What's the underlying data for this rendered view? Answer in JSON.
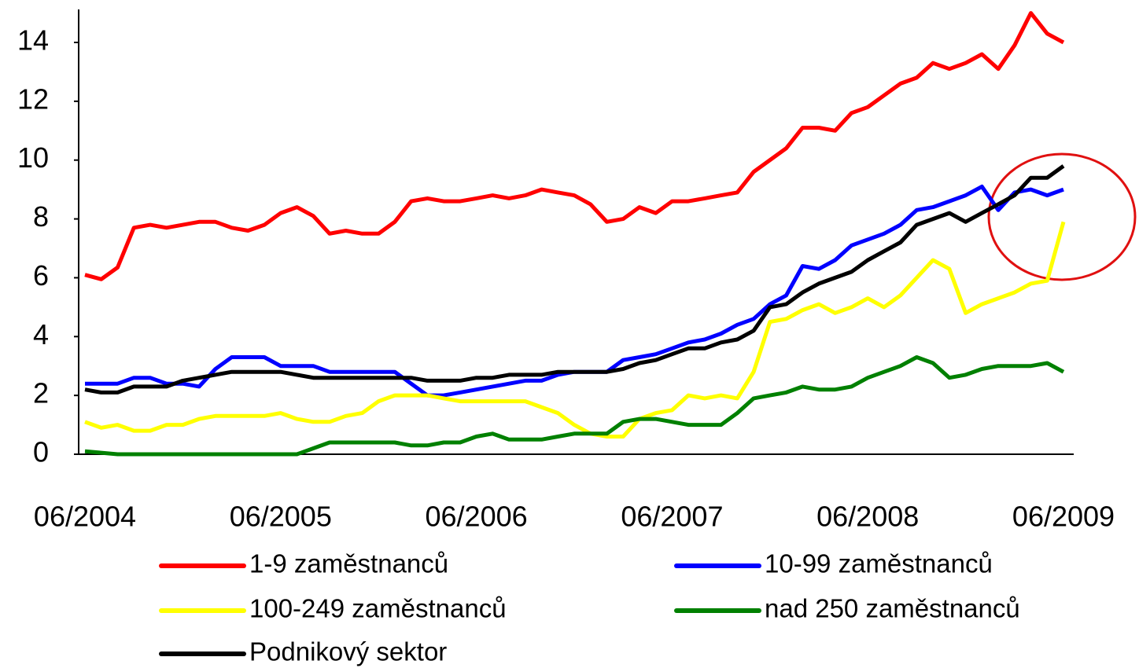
{
  "chart_data": {
    "type": "line",
    "categories": [
      "06/2004",
      null,
      null,
      null,
      null,
      null,
      null,
      null,
      null,
      null,
      null,
      null,
      "06/2005",
      null,
      null,
      null,
      null,
      null,
      null,
      null,
      null,
      null,
      null,
      null,
      "06/2006",
      null,
      null,
      null,
      null,
      null,
      null,
      null,
      null,
      null,
      null,
      null,
      "06/2007",
      null,
      null,
      null,
      null,
      null,
      null,
      null,
      null,
      null,
      null,
      null,
      "06/2008",
      null,
      null,
      null,
      null,
      null,
      null,
      null,
      null,
      null,
      null,
      null,
      "06/2009"
    ],
    "series": [
      {
        "name": "1-9 zaměstnanců",
        "color": "#ff0000",
        "values": [
          6.1,
          5.95,
          6.35,
          7.7,
          7.8,
          7.7,
          7.8,
          7.9,
          7.9,
          7.7,
          7.6,
          7.8,
          8.2,
          8.4,
          8.1,
          7.5,
          7.6,
          7.5,
          7.5,
          7.9,
          8.6,
          8.7,
          8.6,
          8.6,
          8.7,
          8.8,
          8.7,
          8.8,
          9.0,
          8.9,
          8.8,
          8.5,
          7.9,
          8.0,
          8.4,
          8.2,
          8.6,
          8.6,
          8.7,
          8.8,
          8.9,
          9.6,
          10.0,
          10.4,
          11.1,
          11.1,
          11.0,
          11.6,
          11.8,
          12.2,
          12.6,
          12.8,
          13.3,
          13.1,
          13.3,
          13.6,
          13.1,
          13.9,
          15.0,
          14.3,
          14.0
        ]
      },
      {
        "name": "10-99 zaměstnanců",
        "color": "#0000ff",
        "values": [
          2.4,
          2.4,
          2.4,
          2.6,
          2.6,
          2.4,
          2.4,
          2.3,
          2.9,
          3.3,
          3.3,
          3.3,
          3.0,
          3.0,
          3.0,
          2.8,
          2.8,
          2.8,
          2.8,
          2.8,
          2.4,
          2.0,
          2.0,
          2.1,
          2.2,
          2.3,
          2.4,
          2.5,
          2.5,
          2.7,
          2.8,
          2.8,
          2.8,
          3.2,
          3.3,
          3.4,
          3.6,
          3.8,
          3.9,
          4.1,
          4.4,
          4.6,
          5.1,
          5.4,
          6.4,
          6.3,
          6.6,
          7.1,
          7.3,
          7.5,
          7.8,
          8.3,
          8.4,
          8.6,
          8.8,
          9.1,
          8.3,
          8.9,
          9.0,
          8.8,
          9.0
        ]
      },
      {
        "name": "100-249 zaměstnanců",
        "color": "#ffff00",
        "values": [
          1.1,
          0.9,
          1.0,
          0.8,
          0.8,
          1.0,
          1.0,
          1.2,
          1.3,
          1.3,
          1.3,
          1.3,
          1.4,
          1.2,
          1.1,
          1.1,
          1.3,
          1.4,
          1.8,
          2.0,
          2.0,
          2.0,
          1.9,
          1.8,
          1.8,
          1.8,
          1.8,
          1.8,
          1.6,
          1.4,
          1.0,
          0.7,
          0.6,
          0.6,
          1.2,
          1.4,
          1.5,
          2.0,
          1.9,
          2.0,
          1.9,
          2.8,
          4.5,
          4.6,
          4.9,
          5.1,
          4.8,
          5.0,
          5.3,
          5.0,
          5.4,
          6.0,
          6.6,
          6.3,
          4.8,
          5.1,
          5.3,
          5.5,
          5.8,
          5.9,
          7.9
        ]
      },
      {
        "name": "nad 250 zaměstnanců",
        "color": "#008000",
        "values": [
          0.1,
          0.05,
          0,
          0,
          0,
          0,
          0,
          0,
          0,
          0,
          0,
          0,
          0,
          0,
          0.2,
          0.4,
          0.4,
          0.4,
          0.4,
          0.4,
          0.3,
          0.3,
          0.4,
          0.4,
          0.6,
          0.7,
          0.5,
          0.5,
          0.5,
          0.6,
          0.7,
          0.7,
          0.7,
          1.1,
          1.2,
          1.2,
          1.1,
          1.0,
          1.0,
          1.0,
          1.4,
          1.9,
          2.0,
          2.1,
          2.3,
          2.2,
          2.2,
          2.3,
          2.6,
          2.8,
          3.0,
          3.3,
          3.1,
          2.6,
          2.7,
          2.9,
          3.0,
          3.0,
          3.0,
          3.1,
          2.8
        ]
      },
      {
        "name": "Podnikový sektor",
        "color": "#000000",
        "values": [
          2.2,
          2.1,
          2.1,
          2.3,
          2.3,
          2.3,
          2.5,
          2.6,
          2.7,
          2.8,
          2.8,
          2.8,
          2.8,
          2.7,
          2.6,
          2.6,
          2.6,
          2.6,
          2.6,
          2.6,
          2.6,
          2.5,
          2.5,
          2.5,
          2.6,
          2.6,
          2.7,
          2.7,
          2.7,
          2.8,
          2.8,
          2.8,
          2.8,
          2.9,
          3.1,
          3.2,
          3.4,
          3.6,
          3.6,
          3.8,
          3.9,
          4.2,
          5.0,
          5.1,
          5.5,
          5.8,
          6.0,
          6.2,
          6.6,
          6.9,
          7.2,
          7.8,
          8.0,
          8.2,
          7.9,
          8.2,
          8.5,
          8.8,
          9.4,
          9.4,
          9.8
        ]
      }
    ],
    "ylim": [
      0,
      15
    ],
    "yticks": [
      0,
      2,
      4,
      6,
      8,
      10,
      12,
      14
    ],
    "grid": false
  }
}
